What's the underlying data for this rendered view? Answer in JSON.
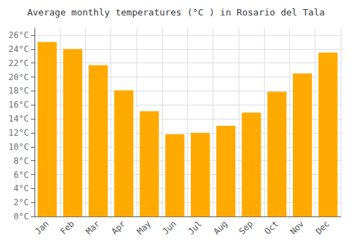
{
  "chart_data": {
    "type": "bar",
    "title": "Average monthly temperatures (°C ) in Rosario del Tala",
    "categories": [
      "Jan",
      "Feb",
      "Mar",
      "Apr",
      "May",
      "Jun",
      "Jul",
      "Aug",
      "Sep",
      "Oct",
      "Nov",
      "Dec"
    ],
    "values": [
      25.0,
      24.0,
      21.7,
      18.1,
      15.1,
      11.8,
      12.0,
      13.0,
      14.9,
      17.9,
      20.5,
      23.5
    ],
    "color": "#FFAA00",
    "ylim": [
      0,
      27
    ],
    "yticks": [
      {
        "value": 0,
        "label": "0°C"
      },
      {
        "value": 2,
        "label": "2°C"
      },
      {
        "value": 4,
        "label": "4°C"
      },
      {
        "value": 6,
        "label": "6°C"
      },
      {
        "value": 8,
        "label": "8°C"
      },
      {
        "value": 10,
        "label": "10°C"
      },
      {
        "value": 12,
        "label": "12°C"
      },
      {
        "value": 14,
        "label": "14°C"
      },
      {
        "value": 16,
        "label": "16°C"
      },
      {
        "value": 18,
        "label": "18°C"
      },
      {
        "value": 20,
        "label": "20°C"
      },
      {
        "value": 22,
        "label": "22°C"
      },
      {
        "value": 24,
        "label": "24°C"
      },
      {
        "value": 26,
        "label": "26°C"
      }
    ],
    "grid": true
  }
}
